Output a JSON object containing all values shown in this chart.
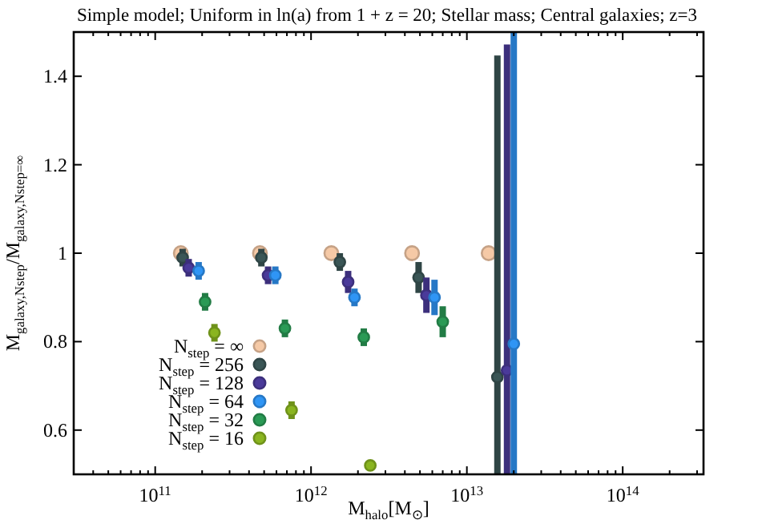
{
  "chart_data": {
    "type": "scatter",
    "title": "Simple model; Uniform in ln(a) from 1 + z = 20; Stellar mass; Central galaxies; z=3",
    "xlabel": "M$_{halo}$[M$_{⊙}$]",
    "ylabel": "M$_{galaxy,Nstep}$/M$_{galaxy,Nstep=∞}$",
    "log": "x",
    "xlim": [
      30000000000.0,
      330000000000000.0
    ],
    "ylim": [
      0.5,
      1.5
    ],
    "xticks": [
      {
        "value": 30000000000.0,
        "label": null
      },
      {
        "value": 40000000000.0,
        "label": null
      },
      {
        "value": 50000000000.0,
        "label": null
      },
      {
        "value": 60000000000.0,
        "label": null
      },
      {
        "value": 70000000000.0,
        "label": null
      },
      {
        "value": 80000000000.0,
        "label": null
      },
      {
        "value": 90000000000.0,
        "label": null
      },
      {
        "value": 100000000000.0,
        "label": "10$^{11}$"
      },
      {
        "value": 200000000000.0,
        "label": null
      },
      {
        "value": 300000000000.0,
        "label": null
      },
      {
        "value": 400000000000.0,
        "label": null
      },
      {
        "value": 500000000000.0,
        "label": null
      },
      {
        "value": 600000000000.0,
        "label": null
      },
      {
        "value": 700000000000.0,
        "label": null
      },
      {
        "value": 800000000000.0,
        "label": null
      },
      {
        "value": 900000000000.0,
        "label": null
      },
      {
        "value": 1000000000000.0,
        "label": "10$^{12}$"
      },
      {
        "value": 2000000000000.0,
        "label": null
      },
      {
        "value": 3000000000000.0,
        "label": null
      },
      {
        "value": 4000000000000.0,
        "label": null
      },
      {
        "value": 5000000000000.0,
        "label": null
      },
      {
        "value": 6000000000000.0,
        "label": null
      },
      {
        "value": 7000000000000.0,
        "label": null
      },
      {
        "value": 8000000000000.0,
        "label": null
      },
      {
        "value": 9000000000000.0,
        "label": null
      },
      {
        "value": 10000000000000.0,
        "label": "10$^{13}$"
      },
      {
        "value": 20000000000000.0,
        "label": null
      },
      {
        "value": 30000000000000.0,
        "label": null
      },
      {
        "value": 40000000000000.0,
        "label": null
      },
      {
        "value": 50000000000000.0,
        "label": null
      },
      {
        "value": 60000000000000.0,
        "label": null
      },
      {
        "value": 70000000000000.0,
        "label": null
      },
      {
        "value": 80000000000000.0,
        "label": null
      },
      {
        "value": 90000000000000.0,
        "label": null
      },
      {
        "value": 100000000000000.0,
        "label": "10$^{14}$"
      },
      {
        "value": 200000000000000.0,
        "label": null
      },
      {
        "value": 300000000000000.0,
        "label": null
      }
    ],
    "yticks": [
      0.6,
      0.8,
      1,
      1.2,
      1.4
    ],
    "grid": false,
    "legend": "bottom left",
    "marker": "circle",
    "series": [
      {
        "name": "N$_{step}$ = ∞",
        "color": "#f5c9a6",
        "x": [
          146000000000.0,
          470000000000.0,
          1350000000000.0,
          4450000000000.0,
          13800000000000.0
        ],
        "values": [
          1.0,
          1.0,
          1.0,
          1.0,
          1.0
        ]
      },
      {
        "name": "N$_{step}$ = 256",
        "color": "#3a5656",
        "x": [
          150000000000.0,
          480000000000.0,
          1530000000000.0,
          4900000000000.0,
          15700000000000.0
        ],
        "values": [
          0.99,
          0.99,
          0.98,
          0.945,
          0.72
        ],
        "errors": [
          0.02,
          0.02,
          0.02,
          0.035,
          [
            0.5,
            1.447
          ]
        ]
      },
      {
        "name": "N$_{step}$ = 128",
        "color": "#4a3a9a",
        "x": [
          164000000000.0,
          530000000000.0,
          1730000000000.0,
          5500000000000.0,
          18100000000000.0
        ],
        "values": [
          0.967,
          0.95,
          0.935,
          0.905,
          0.735
        ],
        "errors": [
          0.02,
          0.02,
          0.025,
          0.04,
          [
            0.5,
            1.472
          ]
        ]
      },
      {
        "name": "N$_{step}$ = 64",
        "color": "#2f95f5",
        "x": [
          190000000000.0,
          590000000000.0,
          1900000000000.0,
          6200000000000.0,
          20000000000000.0
        ],
        "values": [
          0.96,
          0.95,
          0.9,
          0.9,
          0.795
        ],
        "errors": [
          0.02,
          0.02,
          0.02,
          0.04,
          [
            0.5,
            1.5
          ]
        ]
      },
      {
        "name": "N$_{step}$ = 32",
        "color": "#2a9a55",
        "x": [
          209000000000.0,
          680000000000.0,
          2180000000000.0,
          7000000000000.0
        ],
        "values": [
          0.89,
          0.83,
          0.81,
          0.845
        ],
        "errors": [
          0.02,
          0.02,
          0.02,
          0.035
        ]
      },
      {
        "name": "N$_{step}$ = 16",
        "color": "#8ab520",
        "x": [
          240000000000.0,
          750000000000.0,
          2400000000000.0
        ],
        "values": [
          0.82,
          0.645,
          0.52
        ],
        "errors": [
          0.02,
          0.02,
          null
        ]
      }
    ]
  }
}
